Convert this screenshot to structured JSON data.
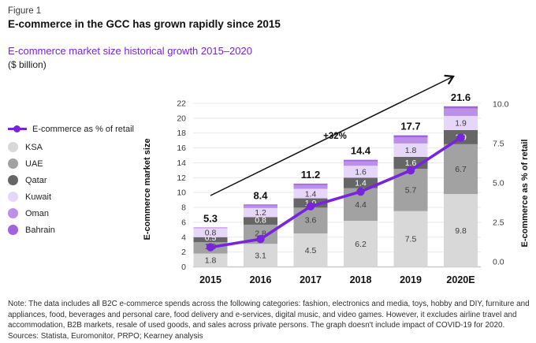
{
  "header": {
    "figure_label": "Figure 1",
    "title": "E-commerce in the GCC has grown rapidly since 2015",
    "subtitle": "E-commerce market size historical growth 2015–2020",
    "unit": "($ billion)"
  },
  "legend": {
    "line_item": {
      "label": "E-commerce as % of retail",
      "color": "#7823dc"
    },
    "countries": [
      {
        "label": "KSA",
        "color": "#d8d8d8"
      },
      {
        "label": "UAE",
        "color": "#a2a2a2"
      },
      {
        "label": "Qatar",
        "color": "#666666"
      },
      {
        "label": "Kuwait",
        "color": "#e6d7f9"
      },
      {
        "label": "Oman",
        "color": "#bb90e8"
      },
      {
        "label": "Bahrain",
        "color": "#a263dd"
      }
    ]
  },
  "chart_data": {
    "type": "bar",
    "subtype": "stacked-bar-with-line",
    "title": "E-commerce market size historical growth 2015–2020",
    "unit": "$ billion",
    "categories": [
      "2015",
      "2016",
      "2017",
      "2018",
      "2019",
      "2020E"
    ],
    "series": [
      {
        "name": "KSA",
        "color": "#d8d8d8",
        "values": [
          1.8,
          3.1,
          4.5,
          6.2,
          7.5,
          9.8
        ],
        "show_labels": true,
        "label_color": "#3d3d3d"
      },
      {
        "name": "UAE",
        "color": "#a2a2a2",
        "values": [
          1.9,
          2.8,
          3.6,
          4.4,
          5.7,
          6.7
        ],
        "show_labels": true,
        "label_color": "#3d3d3d"
      },
      {
        "name": "Qatar",
        "color": "#666666",
        "values": [
          0.5,
          0.8,
          1.0,
          1.4,
          1.6,
          1.9
        ],
        "show_labels": true,
        "label_color": "#ffffff"
      },
      {
        "name": "Kuwait",
        "color": "#e6d7f9",
        "values": [
          0.8,
          1.2,
          1.4,
          1.6,
          1.8,
          1.9
        ],
        "show_labels": true,
        "label_color": "#3d3d3d"
      },
      {
        "name": "Oman",
        "color": "#bb90e8",
        "values": [
          0.2,
          0.35,
          0.5,
          0.6,
          0.8,
          1.0
        ],
        "show_labels": false,
        "label_color": "#3d3d3d"
      },
      {
        "name": "Bahrain",
        "color": "#a263dd",
        "values": [
          0.1,
          0.15,
          0.2,
          0.2,
          0.3,
          0.3
        ],
        "show_labels": false,
        "label_color": "#3d3d3d"
      }
    ],
    "totals": [
      "5.3",
      "8.4",
      "11.2",
      "14.4",
      "17.7",
      "21.6"
    ],
    "line_series": {
      "name": "E-commerce as % of retail",
      "color": "#7823dc",
      "axis": "right",
      "values_estimated": [
        1.2,
        1.7,
        3.7,
        4.6,
        5.9,
        7.9
      ]
    },
    "left_axis": {
      "title": "E-commerce market size",
      "min": 0,
      "max": 22,
      "step": 2,
      "ticks": [
        "0",
        "2",
        "4",
        "6",
        "8",
        "10",
        "12",
        "14",
        "16",
        "18",
        "20",
        "22"
      ]
    },
    "right_axis": {
      "title": "E-commerce as % of retail",
      "min": 0,
      "max": 10,
      "ticks": [
        "0.0",
        "2.5",
        "5.0",
        "7.5",
        "10.0"
      ]
    },
    "annotation": {
      "label": "+32%",
      "type": "growth-arrow"
    },
    "grid": true,
    "legend_position": "left"
  },
  "footnote": {
    "note": "Note: The data includes all B2C e-commerce spends across the following categories: fashion, electronics and media, toys, hobby and DIY, furniture and appliances, food, beverages and personal care, food delivery and e-services, digital music, and video games. However, it excludes airline travel and accommodation, B2B markets, resale of used goods, and sales across private persons. The graph doesn't include impact of COVID-19 for 2020.",
    "sources": "Sources: Statista, Euromonitor, PRPO;  Kearney analysis"
  }
}
